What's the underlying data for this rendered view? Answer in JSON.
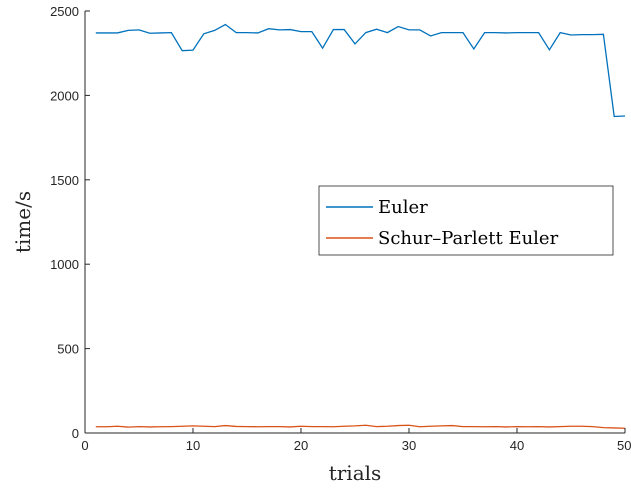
{
  "chart_data": {
    "type": "line",
    "xlabel": "trials",
    "ylabel": "time/s",
    "xlim": [
      0,
      50
    ],
    "ylim": [
      0,
      2500
    ],
    "xticks": [
      0,
      10,
      20,
      30,
      40,
      50
    ],
    "xtick_labels": [
      "0",
      "10",
      "20",
      "30",
      "40",
      "50"
    ],
    "yticks": [
      0,
      500,
      1000,
      1500,
      2000,
      2500
    ],
    "ytick_labels": [
      "0",
      "500",
      "1000",
      "1500",
      "2000",
      "2500"
    ],
    "grid": false,
    "legend_position": "right",
    "x": [
      1,
      2,
      3,
      4,
      5,
      6,
      7,
      8,
      9,
      10,
      11,
      12,
      13,
      14,
      15,
      16,
      17,
      18,
      19,
      20,
      21,
      22,
      23,
      24,
      25,
      26,
      27,
      28,
      29,
      30,
      31,
      32,
      33,
      34,
      35,
      36,
      37,
      38,
      39,
      40,
      41,
      42,
      43,
      44,
      45,
      46,
      47,
      48,
      49,
      50
    ],
    "series": [
      {
        "name": "Euler",
        "color": "#0072BD",
        "values": [
          2370,
          2370,
          2370,
          2385,
          2388,
          2368,
          2370,
          2372,
          2265,
          2268,
          2365,
          2385,
          2420,
          2372,
          2372,
          2370,
          2395,
          2388,
          2390,
          2378,
          2378,
          2280,
          2390,
          2390,
          2305,
          2372,
          2392,
          2372,
          2408,
          2388,
          2388,
          2352,
          2372,
          2372,
          2372,
          2275,
          2372,
          2372,
          2370,
          2372,
          2372,
          2372,
          2270,
          2372,
          2358,
          2360,
          2360,
          2362,
          1875,
          1878
        ]
      },
      {
        "name": "Schur–Parlett Euler",
        "color": "#D95319",
        "values": [
          37,
          37,
          40,
          35,
          38,
          36,
          37,
          38,
          40,
          42,
          40,
          38,
          44,
          39,
          38,
          37,
          38,
          38,
          36,
          40,
          38,
          38,
          37,
          40,
          42,
          46,
          38,
          40,
          44,
          46,
          37,
          40,
          42,
          44,
          38,
          38,
          37,
          38,
          36,
          38,
          37,
          38,
          36,
          38,
          40,
          40,
          38,
          32,
          30,
          28
        ]
      }
    ]
  }
}
